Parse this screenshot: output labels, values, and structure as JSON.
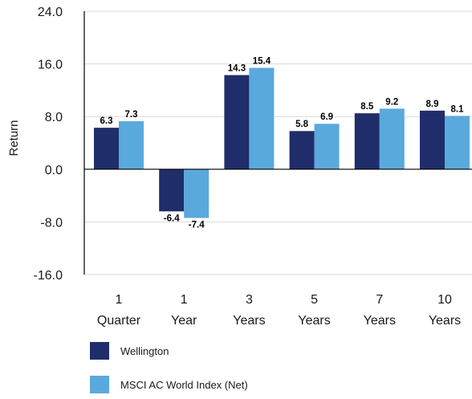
{
  "chart_data": {
    "type": "bar",
    "title": "",
    "xlabel": "",
    "ylabel": "Return",
    "ylim": [
      -16,
      24
    ],
    "yticks": [
      "24.0",
      "16.0",
      "8.0",
      "0.0",
      "-8.0",
      "-16.0"
    ],
    "categories": [
      [
        "1",
        "Quarter"
      ],
      [
        "1",
        "Year"
      ],
      [
        "3",
        "Years"
      ],
      [
        "5",
        "Years"
      ],
      [
        "7",
        "Years"
      ],
      [
        "10",
        "Years"
      ]
    ],
    "series": [
      {
        "name": "Wellington",
        "color": "#1f2d6b",
        "values": [
          6.3,
          -6.4,
          14.3,
          5.8,
          8.5,
          8.9
        ],
        "labels": [
          "6.3",
          "-6.4",
          "14.3",
          "5.8",
          "8.5",
          "8.9"
        ]
      },
      {
        "name": "MSCI AC World Index (Net)",
        "color": "#5aa9dc",
        "values": [
          7.3,
          -7.4,
          15.4,
          6.9,
          9.2,
          8.1
        ],
        "labels": [
          "7.3",
          "-7.4",
          "15.4",
          "6.9",
          "9.2",
          "8.1"
        ]
      }
    ],
    "grid": true,
    "legend_position": "bottom-left"
  }
}
